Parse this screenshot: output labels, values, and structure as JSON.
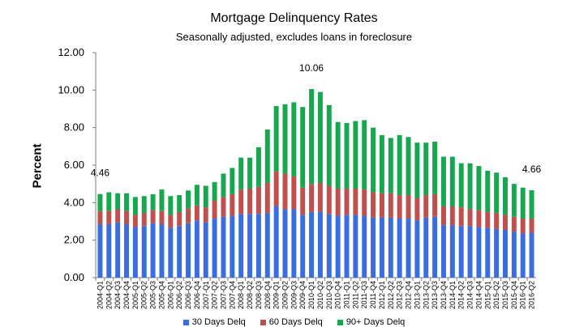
{
  "chart_data": {
    "type": "bar",
    "stacked": true,
    "title": "Mortgage Delinquency Rates",
    "subtitle": "Seasonally adjusted, excludes loans in foreclosure",
    "ylabel": "Percent",
    "xlabel": "",
    "ylim": [
      0,
      12
    ],
    "yticks": [
      "0.00",
      "2.00",
      "4.00",
      "6.00",
      "8.00",
      "10.00",
      "12.00"
    ],
    "grid": false,
    "legend_position": "bottom",
    "categories": [
      "2004-Q1",
      "2004-Q2",
      "2004-Q3",
      "2004-Q4",
      "2005-Q1",
      "2005-Q2",
      "2005-Q3",
      "2005-Q4",
      "2006-Q1",
      "2006-Q2",
      "2006-Q3",
      "2006-Q4",
      "2007-Q1",
      "2007-Q2",
      "2007-Q3",
      "2007-Q4",
      "2008-Q1",
      "2008-Q2",
      "2008-Q3",
      "2008-Q4",
      "2009-Q1",
      "2009-Q2",
      "2009-Q3",
      "2009-Q4",
      "2010-Q1",
      "2010-Q2",
      "2010-Q3",
      "2010-Q4",
      "2011-Q1",
      "2011-Q2",
      "2011-Q3",
      "2011-Q4",
      "2012-Q1",
      "2012-Q2",
      "2012-Q3",
      "2012-Q4",
      "2013-Q1",
      "2013-Q2",
      "2013-Q3",
      "2013-Q4",
      "2014-Q1",
      "2014-Q2",
      "2014-Q3",
      "2014-Q4",
      "2015-Q1",
      "2015-Q2",
      "2015-Q3",
      "2015-Q4",
      "2016-Q1",
      "2016-Q2"
    ],
    "series": [
      {
        "name": "30 Days Delq",
        "color": "#3a6de0",
        "values": [
          2.85,
          2.85,
          2.95,
          2.85,
          2.7,
          2.75,
          2.9,
          2.85,
          2.65,
          2.75,
          2.9,
          3.05,
          2.95,
          3.15,
          3.25,
          3.3,
          3.4,
          3.4,
          3.4,
          3.45,
          3.8,
          3.65,
          3.65,
          3.35,
          3.5,
          3.5,
          3.4,
          3.3,
          3.35,
          3.35,
          3.3,
          3.2,
          3.2,
          3.2,
          3.15,
          3.15,
          3.05,
          3.2,
          3.25,
          2.8,
          2.8,
          2.75,
          2.75,
          2.7,
          2.65,
          2.6,
          2.55,
          2.45,
          2.35,
          2.4
        ]
      },
      {
        "name": "60 Days Delq",
        "color": "#c0504d",
        "values": [
          0.7,
          0.7,
          0.7,
          0.7,
          0.65,
          0.7,
          0.7,
          0.7,
          0.7,
          0.75,
          0.8,
          0.8,
          0.8,
          0.95,
          1.05,
          1.15,
          1.3,
          1.35,
          1.45,
          1.6,
          1.85,
          1.9,
          1.75,
          1.45,
          1.5,
          1.55,
          1.5,
          1.45,
          1.4,
          1.4,
          1.4,
          1.35,
          1.3,
          1.3,
          1.25,
          1.25,
          1.2,
          1.2,
          1.2,
          1.0,
          1.0,
          1.0,
          0.9,
          0.9,
          0.85,
          0.85,
          0.8,
          0.8,
          0.8,
          0.75
        ]
      },
      {
        "name": "90+ Days Delq",
        "color": "#17a84f",
        "values": [
          0.91,
          1.0,
          0.85,
          0.95,
          0.95,
          0.9,
          0.85,
          1.15,
          1.0,
          0.9,
          0.95,
          1.1,
          1.15,
          1.0,
          1.25,
          1.4,
          1.7,
          1.65,
          2.1,
          2.85,
          3.5,
          3.7,
          3.95,
          4.3,
          5.06,
          4.85,
          4.3,
          3.55,
          3.5,
          3.6,
          3.7,
          3.45,
          3.1,
          2.95,
          3.2,
          3.1,
          2.95,
          2.8,
          2.8,
          2.65,
          2.65,
          2.35,
          2.45,
          2.35,
          2.2,
          2.15,
          2.0,
          1.75,
          1.65,
          1.51
        ]
      }
    ],
    "annotations": [
      {
        "category": "2004-Q1",
        "text": "4.46"
      },
      {
        "category": "2010-Q1",
        "text": "10.06"
      },
      {
        "category": "2016-Q2",
        "text": "4.66"
      }
    ]
  }
}
